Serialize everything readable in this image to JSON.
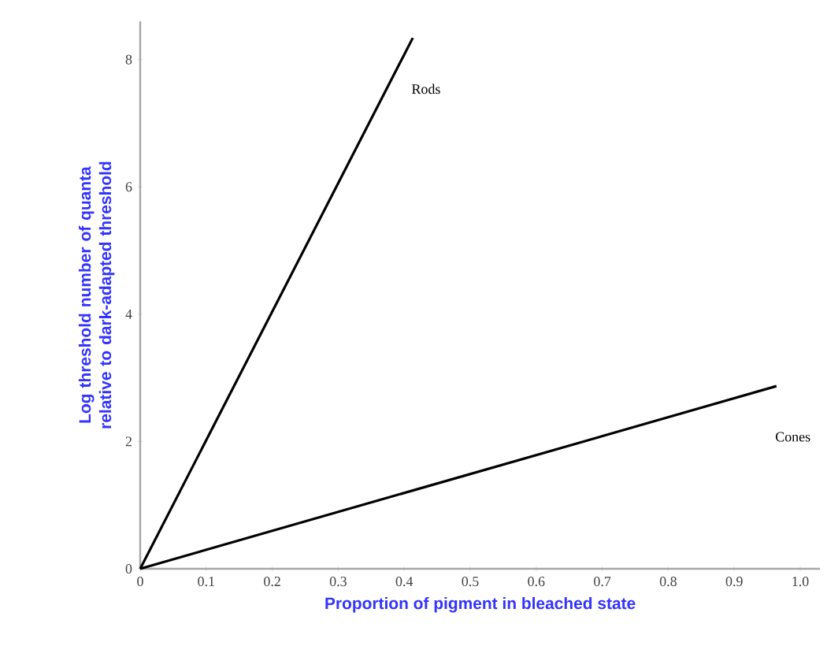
{
  "chart_data": {
    "type": "line",
    "xlabel": "Proportion of pigment in bleached state",
    "ylabel": "Log threshold number of quanta relative to dark-adapted threshold",
    "xlim": [
      0,
      1.03
    ],
    "ylim": [
      0,
      8.6
    ],
    "xticks": [
      0,
      0.1,
      0.2,
      0.3,
      0.4,
      0.5,
      0.6,
      0.7,
      0.8,
      0.9,
      {
        "value": 1,
        "label": "1.0"
      }
    ],
    "yticks": [
      0,
      2,
      4,
      6,
      8
    ],
    "series": [
      {
        "name": "Rods",
        "color": "#000000",
        "x": [
          0,
          0.413
        ],
        "values": [
          0,
          8.34
        ]
      },
      {
        "name": "Cones",
        "color": "#000000",
        "x": [
          0,
          0.964
        ],
        "values": [
          0,
          2.87
        ]
      }
    ],
    "grid": false,
    "legend": false,
    "marker": "none",
    "line_style": "solid"
  }
}
